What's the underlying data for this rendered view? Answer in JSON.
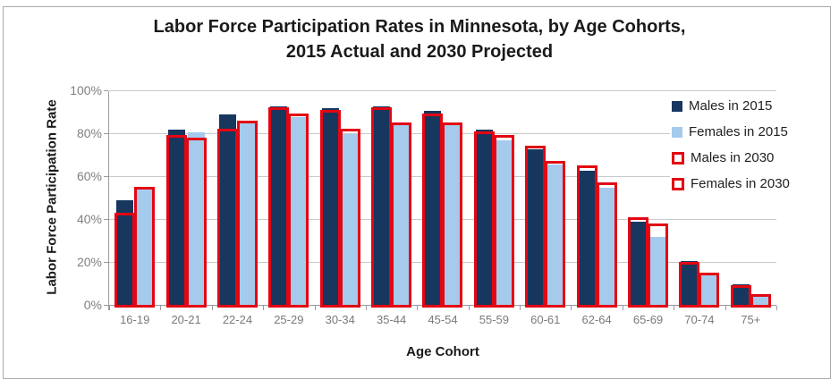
{
  "window": {
    "background": "#FFFFFF",
    "border_color": "#ABABAB"
  },
  "chart_data": {
    "type": "bar",
    "title_line1": "Labor Force Participation Rates in Minnesota, by Age Cohorts,",
    "title_line2": "2015 Actual and 2030 Projected",
    "xlabel": "Age Cohort",
    "ylabel": "Labor Force Participation Rate",
    "categories": [
      "16-19",
      "20-21",
      "22-24",
      "25-29",
      "30-34",
      "35-44",
      "45-54",
      "55-59",
      "60-61",
      "62-64",
      "65-69",
      "70-74",
      "75+"
    ],
    "series": [
      {
        "name": "Males in 2015",
        "style": "fill",
        "color": "#17375E",
        "values": [
          49,
          82,
          89,
          93,
          92,
          93,
          91,
          82,
          73,
          63,
          39,
          21,
          10
        ]
      },
      {
        "name": "Females in 2015",
        "style": "fill",
        "color": "#A6CAEC",
        "values": [
          54,
          81,
          85,
          88,
          80,
          84,
          84,
          77,
          66,
          55,
          32,
          14,
          5
        ]
      },
      {
        "name": "Males in 2030",
        "style": "outline",
        "color": "#E30613",
        "values": [
          43,
          79,
          82,
          92,
          91,
          92,
          89,
          81,
          74,
          65,
          41,
          20,
          9
        ]
      },
      {
        "name": "Females in 2030",
        "style": "outline",
        "color": "#E30613",
        "values": [
          55,
          78,
          86,
          89,
          82,
          85,
          85,
          79,
          67,
          57,
          38,
          15,
          5
        ]
      }
    ],
    "y_axis": {
      "min": 0,
      "max": 100,
      "step": 20,
      "tick_labels": [
        "0%",
        "20%",
        "40%",
        "60%",
        "80%",
        "100%"
      ],
      "grid": true
    },
    "legend": {
      "position": "upper-right",
      "items": [
        "Males in 2015",
        "Females in 2015",
        "Males in 2030",
        "Females in 2030"
      ]
    }
  }
}
